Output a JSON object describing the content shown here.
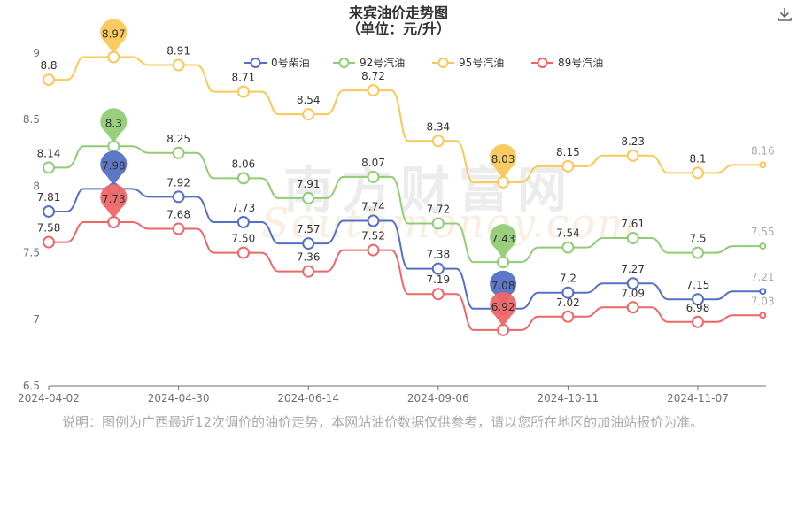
{
  "chart_data": {
    "type": "line",
    "title": "来宾油价走势图",
    "subtitle": "（单位：元/升）",
    "x_tick_labels": [
      "2024-04-02",
      "2024-04-30",
      "2024-06-14",
      "2024-09-06",
      "2024-10-11",
      "2024-11-07"
    ],
    "x_tick_indices": [
      0,
      2,
      4,
      6,
      8,
      10
    ],
    "ylim": [
      6.5,
      9
    ],
    "y_ticks": [
      6.5,
      7,
      7.5,
      8,
      8.5,
      9
    ],
    "grid": false,
    "legend_position": "top",
    "series": [
      {
        "name": "0号柴油",
        "color": "#5470c6",
        "values": [
          7.81,
          7.98,
          7.92,
          7.73,
          7.57,
          7.74,
          7.38,
          7.08,
          7.2,
          7.27,
          7.15,
          7.21
        ],
        "max_pin": "7.98",
        "min_pin": "7.08"
      },
      {
        "name": "92号汽油",
        "color": "#91cc75",
        "values": [
          8.14,
          8.3,
          8.25,
          8.06,
          7.91,
          8.07,
          7.72,
          7.43,
          7.54,
          7.61,
          7.5,
          7.55
        ],
        "max_pin": "8.3",
        "min_pin": "7.43"
      },
      {
        "name": "95号汽油",
        "color": "#fac858",
        "values": [
          8.8,
          8.97,
          8.91,
          8.71,
          8.54,
          8.72,
          8.34,
          8.03,
          8.15,
          8.23,
          8.1,
          8.16
        ],
        "max_pin": "8.97",
        "min_pin": "8.03"
      },
      {
        "name": "89号汽油",
        "color": "#ee6666",
        "values": [
          7.58,
          7.73,
          7.68,
          7.5,
          7.36,
          7.52,
          7.19,
          6.92,
          7.02,
          7.09,
          6.98,
          7.03
        ],
        "max_pin": "7.73",
        "min_pin": "6.92"
      }
    ],
    "data_labels": [
      [
        "7.81",
        "",
        "7.92",
        "7.73",
        "7.57",
        "7.74",
        "7.38",
        "",
        "7.2",
        "7.27",
        "7.15",
        "7.21"
      ],
      [
        "8.14",
        "",
        "8.25",
        "8.06",
        "7.91",
        "8.07",
        "7.72",
        "",
        "7.54",
        "7.61",
        "7.5",
        "7.55"
      ],
      [
        "8.8",
        "",
        "8.91",
        "8.71",
        "8.54",
        "8.72",
        "8.34",
        "",
        "8.15",
        "8.23",
        "8.1",
        "8.16"
      ],
      [
        "7.58",
        "",
        "7.68",
        "7.50",
        "7.36",
        "7.52",
        "7.19",
        "",
        "7.02",
        "7.09",
        "6.98",
        "7.03"
      ]
    ]
  },
  "note": "说明：图例为广西最近12次调价的油价走势，本网站油价数据仅供参考，请以您所在地区的加油站报价为准。",
  "watermark": "南方财富网",
  "watermark_sub": "Southmoney.com",
  "toolbar": {
    "download_icon": "download-icon"
  }
}
